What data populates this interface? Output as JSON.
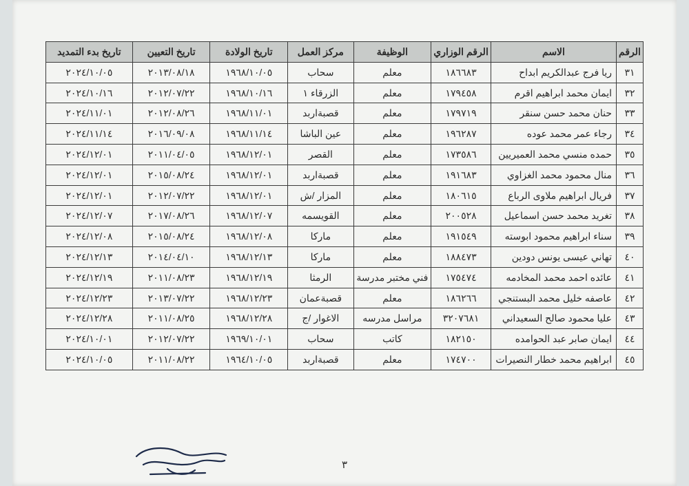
{
  "pageNumber": "٣",
  "table": {
    "headerBg": "#c8cbc9",
    "borderColor": "#3a3a3a",
    "columns": [
      {
        "key": "num",
        "label": "الرقم"
      },
      {
        "key": "name",
        "label": "الاسم"
      },
      {
        "key": "min",
        "label": "الرقم الوزاري"
      },
      {
        "key": "job",
        "label": "الوظيفة"
      },
      {
        "key": "ctr",
        "label": "مركز العمل"
      },
      {
        "key": "dob",
        "label": "تاريخ الولادة"
      },
      {
        "key": "apt",
        "label": "تاريخ التعيين"
      },
      {
        "key": "ext",
        "label": "تاريخ بدء التمديد"
      }
    ],
    "rows": [
      {
        "num": "٣١",
        "name": "ريا فرج عبدالكريم ابداح",
        "min": "١٨٦٦٨٣",
        "job": "معلم",
        "ctr": "سحاب",
        "dob": "١٩٦٨/١٠/٠٥",
        "apt": "٢٠١٣/٠٨/١٨",
        "ext": "٢٠٢٤/١٠/٠٥"
      },
      {
        "num": "٣٢",
        "name": "ايمان محمد ابراهيم اقرم",
        "min": "١٧٩٤٥٨",
        "job": "معلم",
        "ctr": "الزرقاء ١",
        "dob": "١٩٦٨/١٠/١٦",
        "apt": "٢٠١٢/٠٧/٢٢",
        "ext": "٢٠٢٤/١٠/١٦"
      },
      {
        "num": "٣٣",
        "name": "حنان محمد حسن سنقر",
        "min": "١٧٩٧١٩",
        "job": "معلم",
        "ctr": "قصبةاربد",
        "dob": "١٩٦٨/١١/٠١",
        "apt": "٢٠١٢/٠٨/٢٦",
        "ext": "٢٠٢٤/١١/٠١"
      },
      {
        "num": "٣٤",
        "name": "رجاء عمر محمد عوده",
        "min": "١٩٦٢٨٧",
        "job": "معلم",
        "ctr": "عين الباشا",
        "dob": "١٩٦٨/١١/١٤",
        "apt": "٢٠١٦/٠٩/٠٨",
        "ext": "٢٠٢٤/١١/١٤"
      },
      {
        "num": "٣٥",
        "name": "حمده منسي محمد العميريين",
        "min": "١٧٣٥٨٦",
        "job": "معلم",
        "ctr": "القصر",
        "dob": "١٩٦٨/١٢/٠١",
        "apt": "٢٠١١/٠٤/٠٥",
        "ext": "٢٠٢٤/١٢/٠١"
      },
      {
        "num": "٣٦",
        "name": "منال محمود محمد الغزاوي",
        "min": "١٩١٦٨٣",
        "job": "معلم",
        "ctr": "قصبةاربد",
        "dob": "١٩٦٨/١٢/٠١",
        "apt": "٢٠١٥/٠٨/٢٤",
        "ext": "٢٠٢٤/١٢/٠١"
      },
      {
        "num": "٣٧",
        "name": "فريال ابراهيم ملاوى الرباع",
        "min": "١٨٠٦١٥",
        "job": "معلم",
        "ctr": "المزار /ش",
        "dob": "١٩٦٨/١٢/٠١",
        "apt": "٢٠١٢/٠٧/٢٢",
        "ext": "٢٠٢٤/١٢/٠١"
      },
      {
        "num": "٣٨",
        "name": "تغريد محمد حسن اسماعيل",
        "min": "٢٠٠٥٢٨",
        "job": "معلم",
        "ctr": "القويسمه",
        "dob": "١٩٦٨/١٢/٠٧",
        "apt": "٢٠١٧/٠٨/٢٦",
        "ext": "٢٠٢٤/١٢/٠٧"
      },
      {
        "num": "٣٩",
        "name": "سناء ابراهيم محمود ابوسته",
        "min": "١٩١٥٤٩",
        "job": "معلم",
        "ctr": "ماركا",
        "dob": "١٩٦٨/١٢/٠٨",
        "apt": "٢٠١٥/٠٨/٢٤",
        "ext": "٢٠٢٤/١٢/٠٨"
      },
      {
        "num": "٤٠",
        "name": "تهاني عيسى يونس دودين",
        "min": "١٨٨٤٧٣",
        "job": "معلم",
        "ctr": "ماركا",
        "dob": "١٩٦٨/١٢/١٣",
        "apt": "٢٠١٤/٠٤/١٠",
        "ext": "٢٠٢٤/١٢/١٣"
      },
      {
        "num": "٤١",
        "name": "عائده احمد محمد المخادمه",
        "min": "١٧٥٤٧٤",
        "job": "فني مختبر مدرسة",
        "ctr": "الرمثا",
        "dob": "١٩٦٨/١٢/١٩",
        "apt": "٢٠١١/٠٨/٢٣",
        "ext": "٢٠٢٤/١٢/١٩"
      },
      {
        "num": "٤٢",
        "name": "عاصفه خليل محمد البستنجي",
        "min": "١٨٦٢٦٦",
        "job": "معلم",
        "ctr": "قصبةعمان",
        "dob": "١٩٦٨/١٢/٢٣",
        "apt": "٢٠١٣/٠٧/٢٢",
        "ext": "٢٠٢٤/١٢/٢٣"
      },
      {
        "num": "٤٣",
        "name": "عليا محمود صالح السعيداني",
        "min": "٣٢٠٧٦٨١",
        "job": "مراسل مدرسه",
        "ctr": "الاغوار /ج",
        "dob": "١٩٦٨/١٢/٢٨",
        "apt": "٢٠١١/٠٨/٢٥",
        "ext": "٢٠٢٤/١٢/٢٨"
      },
      {
        "num": "٤٤",
        "name": "ايمان صابر عبد الحوامده",
        "min": "١٨٢١٥٠",
        "job": "كاتب",
        "ctr": "سحاب",
        "dob": "١٩٦٩/١٠/٠١",
        "apt": "٢٠١٢/٠٧/٢٢",
        "ext": "٢٠٢٤/١٠/٠١"
      },
      {
        "num": "٤٥",
        "name": "ابراهيم محمد خطار النصيرات",
        "min": "١٧٤٧٠٠",
        "job": "معلم",
        "ctr": "قصبةاربد",
        "dob": "١٩٦٤/١٠/٠٥",
        "apt": "٢٠١١/٠٨/٢٢",
        "ext": "٢٠٢٤/١٠/٠٥"
      }
    ]
  }
}
